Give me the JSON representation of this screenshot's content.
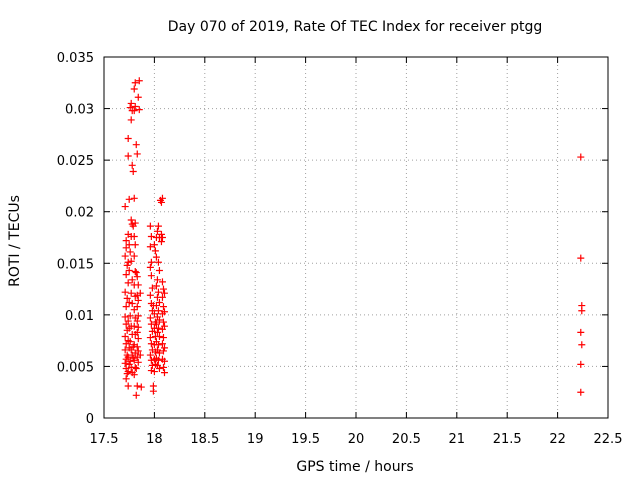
{
  "colors": {
    "points": "#ff0000",
    "axis": "#000000",
    "grid": "#a0a0a0",
    "background": "#ffffff"
  },
  "chart_data": {
    "type": "scatter",
    "title": "Day 070 of 2019, Rate Of TEC Index for receiver ptgg",
    "xlabel": "GPS time / hours",
    "ylabel": "ROTI / TECUs",
    "xlim": [
      17.5,
      22.5
    ],
    "ylim": [
      0,
      0.035
    ],
    "xticks": [
      17.5,
      18,
      18.5,
      19,
      19.5,
      20,
      20.5,
      21,
      21.5,
      22,
      22.5
    ],
    "xtick_labels": [
      "17.5",
      "18",
      "18.5",
      "19",
      "19.5",
      "20",
      "20.5",
      "21",
      "21.5",
      "22",
      "22.5"
    ],
    "yticks": [
      0,
      0.005,
      0.01,
      0.015,
      0.02,
      0.025,
      0.03,
      0.035
    ],
    "ytick_labels": [
      "0",
      "0.005",
      "0.01",
      "0.015",
      "0.02",
      "0.025",
      "0.03",
      "0.035"
    ],
    "grid": true,
    "marker": "+",
    "series": [
      {
        "name": "ROTI",
        "points": [
          [
            17.71,
            0.0205
          ],
          [
            17.72,
            0.0172
          ],
          [
            17.72,
            0.0165
          ],
          [
            17.71,
            0.0157
          ],
          [
            17.73,
            0.0148
          ],
          [
            17.72,
            0.0139
          ],
          [
            17.71,
            0.0122
          ],
          [
            17.73,
            0.0116
          ],
          [
            17.72,
            0.0108
          ],
          [
            17.71,
            0.0098
          ],
          [
            17.72,
            0.0091
          ],
          [
            17.73,
            0.0085
          ],
          [
            17.71,
            0.0079
          ],
          [
            17.72,
            0.0072
          ],
          [
            17.71,
            0.0066
          ],
          [
            17.73,
            0.0061
          ],
          [
            17.72,
            0.0057
          ],
          [
            17.71,
            0.0053
          ],
          [
            17.72,
            0.0048
          ],
          [
            17.73,
            0.0043
          ],
          [
            17.72,
            0.0038
          ],
          [
            17.74,
            0.0031
          ],
          [
            17.74,
            0.0271
          ],
          [
            17.74,
            0.0254
          ],
          [
            17.75,
            0.0212
          ],
          [
            17.74,
            0.0178
          ],
          [
            17.75,
            0.0168
          ],
          [
            17.74,
            0.0151
          ],
          [
            17.75,
            0.0143
          ],
          [
            17.74,
            0.0131
          ],
          [
            17.75,
            0.0112
          ],
          [
            17.74,
            0.0094
          ],
          [
            17.75,
            0.0087
          ],
          [
            17.74,
            0.0075
          ],
          [
            17.75,
            0.0068
          ],
          [
            17.74,
            0.0059
          ],
          [
            17.75,
            0.0052
          ],
          [
            17.74,
            0.0045
          ],
          [
            17.76,
            0.0301
          ],
          [
            17.77,
            0.0305
          ],
          [
            17.78,
            0.0298
          ],
          [
            17.77,
            0.0289
          ],
          [
            17.78,
            0.0245
          ],
          [
            17.79,
            0.0239
          ],
          [
            17.77,
            0.0192
          ],
          [
            17.78,
            0.0188
          ],
          [
            17.79,
            0.0186
          ],
          [
            17.77,
            0.0176
          ],
          [
            17.76,
            0.0161
          ],
          [
            17.77,
            0.0152
          ],
          [
            17.78,
            0.0134
          ],
          [
            17.77,
            0.0121
          ],
          [
            17.78,
            0.0111
          ],
          [
            17.76,
            0.0099
          ],
          [
            17.77,
            0.0089
          ],
          [
            17.78,
            0.0081
          ],
          [
            17.76,
            0.0074
          ],
          [
            17.77,
            0.0066
          ],
          [
            17.78,
            0.0061
          ],
          [
            17.76,
            0.0055
          ],
          [
            17.77,
            0.0049
          ],
          [
            17.78,
            0.0044
          ],
          [
            17.79,
            0.0069
          ],
          [
            17.79,
            0.0058
          ],
          [
            17.8,
            0.0319
          ],
          [
            17.81,
            0.0325
          ],
          [
            17.8,
            0.0298
          ],
          [
            17.81,
            0.0302
          ],
          [
            17.8,
            0.0213
          ],
          [
            17.81,
            0.0189
          ],
          [
            17.8,
            0.0176
          ],
          [
            17.81,
            0.0168
          ],
          [
            17.8,
            0.0157
          ],
          [
            17.81,
            0.0142
          ],
          [
            17.8,
            0.0129
          ],
          [
            17.81,
            0.0118
          ],
          [
            17.8,
            0.0105
          ],
          [
            17.81,
            0.0097
          ],
          [
            17.8,
            0.0089
          ],
          [
            17.81,
            0.0081
          ],
          [
            17.8,
            0.0071
          ],
          [
            17.81,
            0.0063
          ],
          [
            17.8,
            0.0056
          ],
          [
            17.81,
            0.0049
          ],
          [
            17.8,
            0.0042
          ],
          [
            17.82,
            0.0265
          ],
          [
            17.83,
            0.0256
          ],
          [
            17.82,
            0.0141
          ],
          [
            17.83,
            0.0137
          ],
          [
            17.84,
            0.0129
          ],
          [
            17.83,
            0.0119
          ],
          [
            17.84,
            0.0114
          ],
          [
            17.83,
            0.0108
          ],
          [
            17.84,
            0.0099
          ],
          [
            17.83,
            0.0094
          ],
          [
            17.84,
            0.0088
          ],
          [
            17.83,
            0.0083
          ],
          [
            17.84,
            0.0077
          ],
          [
            17.83,
            0.0069
          ],
          [
            17.84,
            0.0065
          ],
          [
            17.83,
            0.0059
          ],
          [
            17.84,
            0.0054
          ],
          [
            17.82,
            0.0048
          ],
          [
            17.83,
            0.0031
          ],
          [
            17.82,
            0.0022
          ],
          [
            17.85,
            0.0327
          ],
          [
            17.84,
            0.0311
          ],
          [
            17.85,
            0.0299
          ],
          [
            17.86,
            0.0121
          ],
          [
            17.86,
            0.0061
          ],
          [
            17.87,
            0.003
          ],
          [
            17.96,
            0.0186
          ],
          [
            17.97,
            0.0176
          ],
          [
            17.96,
            0.0166
          ],
          [
            17.97,
            0.0151
          ],
          [
            17.96,
            0.0146
          ],
          [
            17.97,
            0.0138
          ],
          [
            17.98,
            0.0126
          ],
          [
            17.96,
            0.0119
          ],
          [
            17.97,
            0.0111
          ],
          [
            17.98,
            0.0104
          ],
          [
            17.96,
            0.0097
          ],
          [
            17.97,
            0.0091
          ],
          [
            17.98,
            0.0084
          ],
          [
            17.96,
            0.0078
          ],
          [
            17.97,
            0.0072
          ],
          [
            17.98,
            0.0066
          ],
          [
            17.96,
            0.0061
          ],
          [
            17.97,
            0.0056
          ],
          [
            17.98,
            0.0051
          ],
          [
            17.97,
            0.0046
          ],
          [
            17.99,
            0.0031
          ],
          [
            17.99,
            0.0026
          ],
          [
            18.0,
            0.0168
          ],
          [
            18.01,
            0.0162
          ],
          [
            17.99,
            0.0109
          ],
          [
            18.0,
            0.0101
          ],
          [
            18.01,
            0.0093
          ],
          [
            18.0,
            0.0087
          ],
          [
            18.01,
            0.0079
          ],
          [
            18.0,
            0.0071
          ],
          [
            18.01,
            0.0064
          ],
          [
            18.0,
            0.0057
          ],
          [
            18.01,
            0.0052
          ],
          [
            18.0,
            0.0045
          ],
          [
            18.02,
            0.0175
          ],
          [
            18.03,
            0.0181
          ],
          [
            18.02,
            0.0156
          ],
          [
            18.03,
            0.0134
          ],
          [
            18.02,
            0.0128
          ],
          [
            18.03,
            0.0117
          ],
          [
            18.02,
            0.0109
          ],
          [
            18.03,
            0.0098
          ],
          [
            18.02,
            0.0091
          ],
          [
            18.03,
            0.0083
          ],
          [
            18.02,
            0.0074
          ],
          [
            18.03,
            0.0066
          ],
          [
            18.02,
            0.0058
          ],
          [
            18.03,
            0.0051
          ],
          [
            18.04,
            0.0186
          ],
          [
            18.05,
            0.0175
          ],
          [
            18.04,
            0.0151
          ],
          [
            18.05,
            0.0143
          ],
          [
            18.04,
            0.0122
          ],
          [
            18.05,
            0.0112
          ],
          [
            18.04,
            0.0104
          ],
          [
            18.05,
            0.0095
          ],
          [
            18.04,
            0.0087
          ],
          [
            18.05,
            0.0079
          ],
          [
            18.04,
            0.0071
          ],
          [
            18.05,
            0.0063
          ],
          [
            18.04,
            0.0056
          ],
          [
            18.05,
            0.0048
          ],
          [
            18.06,
            0.0211
          ],
          [
            18.07,
            0.0209
          ],
          [
            18.08,
            0.0213
          ],
          [
            18.07,
            0.0178
          ],
          [
            18.08,
            0.0175
          ],
          [
            18.07,
            0.0171
          ],
          [
            18.08,
            0.0132
          ],
          [
            18.09,
            0.0125
          ],
          [
            18.08,
            0.0117
          ],
          [
            18.09,
            0.0108
          ],
          [
            18.08,
            0.0101
          ],
          [
            18.09,
            0.0093
          ],
          [
            18.08,
            0.0086
          ],
          [
            18.09,
            0.0078
          ],
          [
            18.08,
            0.0072
          ],
          [
            18.09,
            0.0065
          ],
          [
            18.08,
            0.0057
          ],
          [
            18.09,
            0.0049
          ],
          [
            18.1,
            0.0121
          ],
          [
            18.1,
            0.0103
          ],
          [
            18.1,
            0.0089
          ],
          [
            18.1,
            0.0068
          ],
          [
            18.1,
            0.0055
          ],
          [
            18.1,
            0.0044
          ],
          [
            22.23,
            0.0253
          ],
          [
            22.23,
            0.0155
          ],
          [
            22.24,
            0.0109
          ],
          [
            22.24,
            0.0104
          ],
          [
            22.23,
            0.0083
          ],
          [
            22.24,
            0.0071
          ],
          [
            22.23,
            0.0052
          ],
          [
            22.23,
            0.0025
          ]
        ]
      }
    ]
  }
}
